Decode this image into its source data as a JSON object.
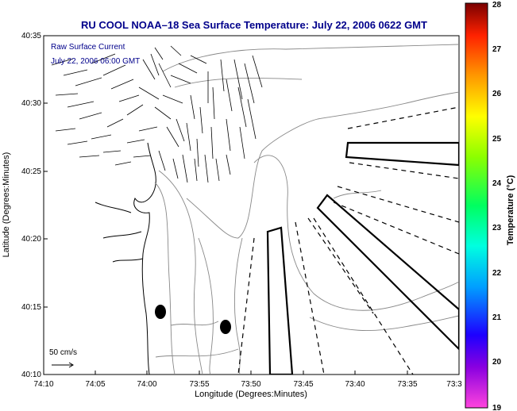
{
  "chart_data": {
    "type": "map-quiver",
    "title": "RU COOL  NOAA–18  Sea Surface Temperature:  July 22, 2006 0622 GMT",
    "xlabel": "Longitude (Degrees:Minutes)",
    "ylabel": "Latitude (Degrees:Minutes)",
    "x_ticks": [
      "74:10",
      "74:05",
      "74:00",
      "73:55",
      "73:50",
      "73:45",
      "73:40",
      "73:35",
      "73:3"
    ],
    "y_ticks": [
      "40:10",
      "40:15",
      "40:20",
      "40:25",
      "40:30",
      "40:35"
    ],
    "annotations": [
      "Raw Surface Current",
      "July 22, 2006 06:00 GMT"
    ],
    "scale_label": "50 cm/s",
    "colorbar": {
      "label": "Temperature (°C)",
      "ticks": [
        "19",
        "20",
        "21",
        "22",
        "23",
        "24",
        "25",
        "26",
        "27",
        "28"
      ],
      "min": 19,
      "max": 28
    },
    "title_color": "#00008b",
    "text_color_annotation": "#00008b"
  }
}
